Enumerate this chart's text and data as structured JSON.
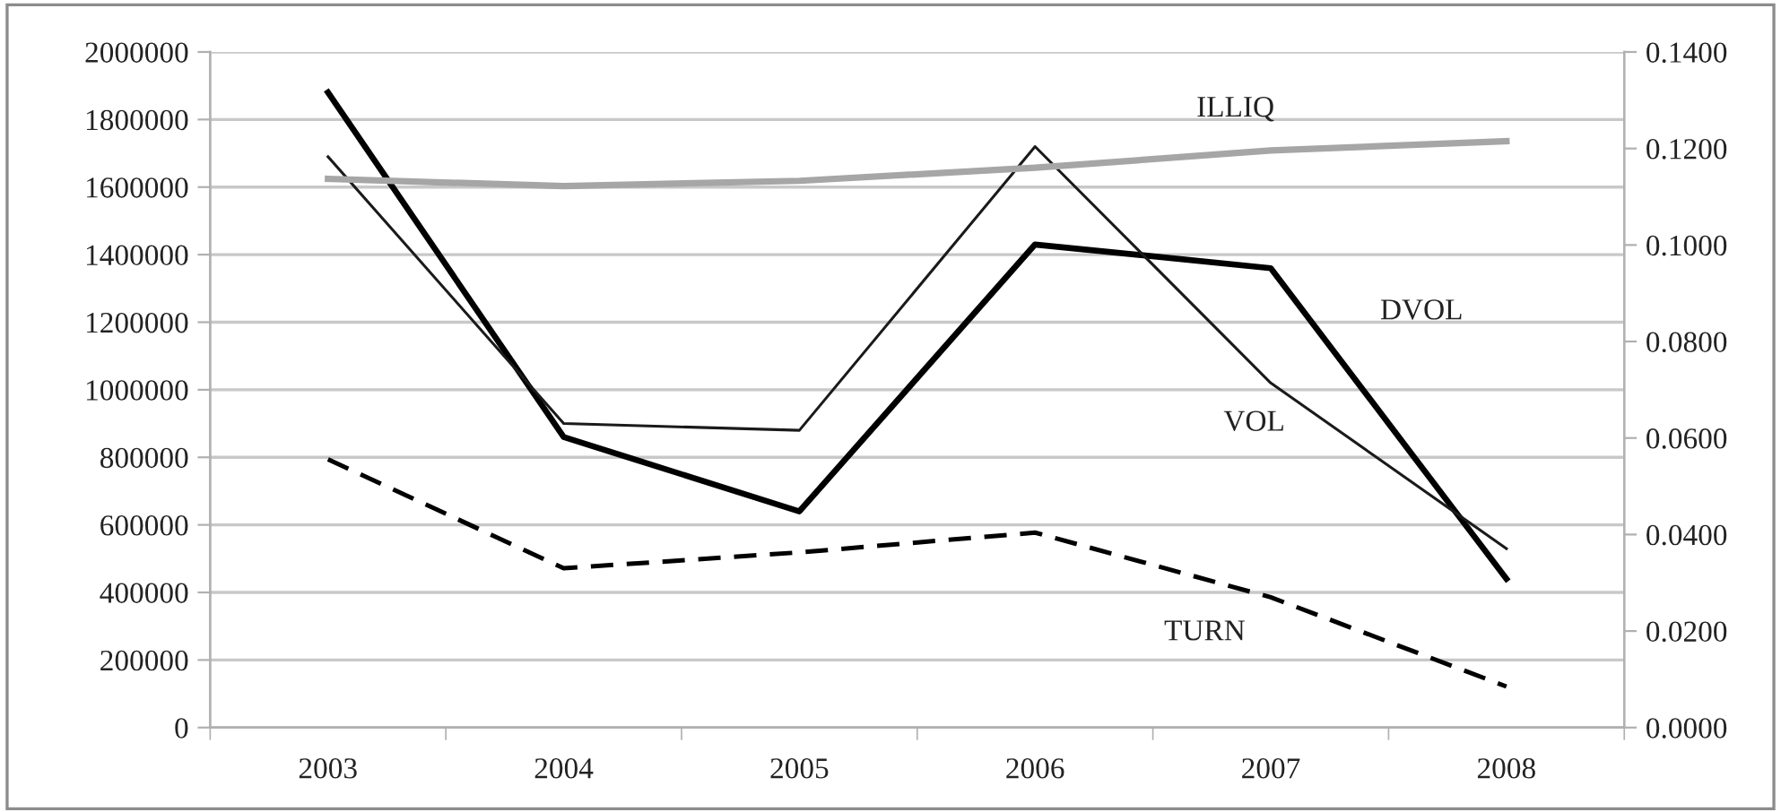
{
  "chart_data": {
    "type": "line",
    "categories": [
      "2003",
      "2004",
      "2005",
      "2006",
      "2007",
      "2008"
    ],
    "series": [
      {
        "name": "ILLIQ",
        "color": "#a6a6a6",
        "axis": "y2",
        "line_style": "solid",
        "values": [
          0.1137,
          0.1122,
          0.1133,
          0.116,
          0.1196,
          0.1215
        ]
      },
      {
        "name": "DVOL",
        "color": "#000000",
        "axis": "y",
        "line_style": "solid",
        "values": [
          1880000,
          860000,
          640000,
          1430000,
          1360000,
          440000
        ]
      },
      {
        "name": "VOL",
        "color": "#1a1a1a",
        "axis": "y",
        "line_style": "solid",
        "values": [
          1690000,
          900000,
          880000,
          1720000,
          1020000,
          530000
        ]
      },
      {
        "name": "TURN",
        "color": "#000000",
        "axis": "y2",
        "line_style": "dashed",
        "values": [
          0.0556,
          0.033,
          0.0363,
          0.0404,
          0.027,
          0.0085
        ]
      }
    ],
    "ylim": [
      0,
      2000000
    ],
    "yticks": [
      0,
      200000,
      400000,
      600000,
      800000,
      1000000,
      1200000,
      1400000,
      1600000,
      1800000,
      2000000
    ],
    "y2lim": [
      0,
      0.14
    ],
    "y2ticks": [
      {
        "value": 0,
        "label": "0.0000"
      },
      {
        "value": 0.02,
        "label": "0.0200"
      },
      {
        "value": 0.04,
        "label": "0.0400"
      },
      {
        "value": 0.06,
        "label": "0.0600"
      },
      {
        "value": 0.08,
        "label": "0.0800"
      },
      {
        "value": 0.1,
        "label": "0.1000"
      },
      {
        "value": 0.12,
        "label": "0.1200"
      },
      {
        "value": 0.14,
        "label": "0.1400"
      }
    ],
    "grid": "y",
    "marker": "none"
  }
}
